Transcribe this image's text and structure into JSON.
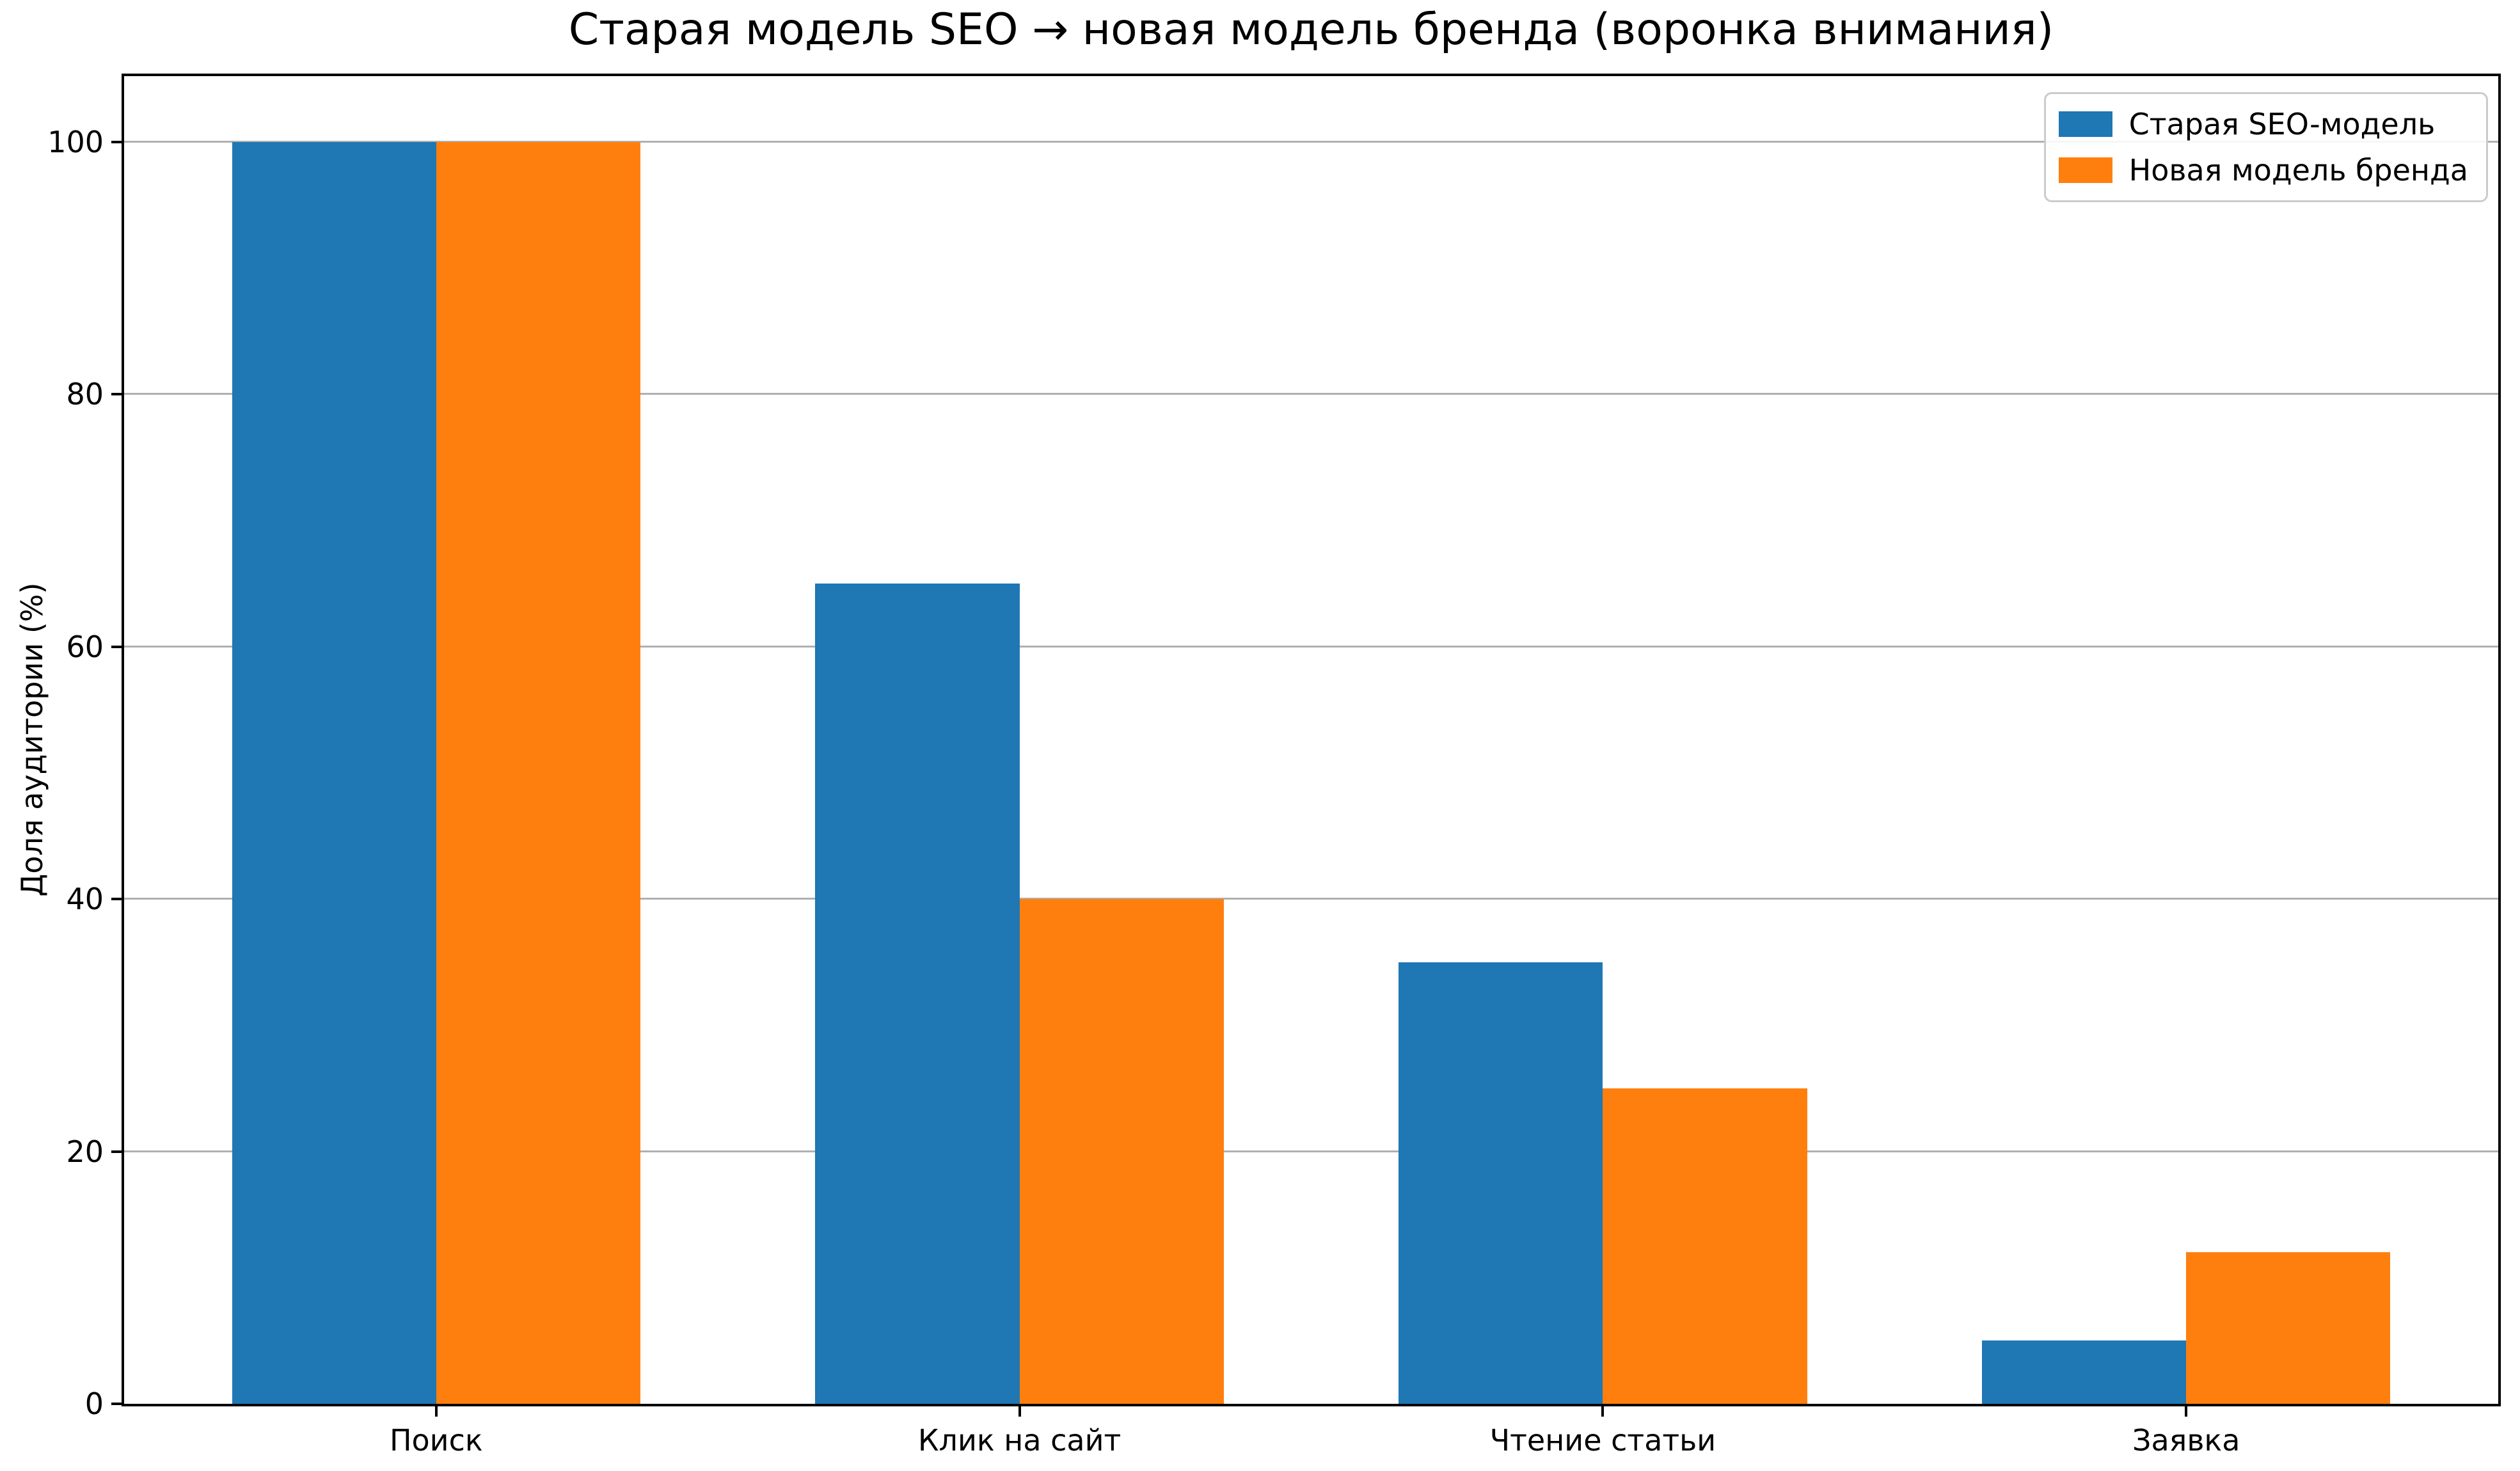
{
  "title": "Старая модель SEO → новая модель бренда (воронка внимания)",
  "chart_data": {
    "type": "bar",
    "title": "Старая модель SEO → новая модель бренда (воронка внимания)",
    "categories": [
      "Поиск",
      "Клик на сайт",
      "Чтение статьи",
      "Заявка"
    ],
    "series": [
      {
        "name": "Старая SEO-модель",
        "color": "#1f77b4",
        "values": [
          100,
          65,
          35,
          5
        ]
      },
      {
        "name": "Новая модель бренда",
        "color": "#ff7f0e",
        "values": [
          100,
          40,
          25,
          12
        ]
      }
    ],
    "xlabel": "",
    "ylabel": "Доля аудитории (%)",
    "ylim": [
      0,
      105.2
    ],
    "xlim": [
      -0.535,
      3.535
    ],
    "bar_width": 0.35,
    "yticks": [
      0,
      20,
      40,
      60,
      80,
      100
    ],
    "grid": true,
    "grid_color": "#b0b0b0",
    "legend_position": "upper right",
    "legend_labels": [
      "Старая SEO-модель",
      "Новая модель бренда"
    ]
  }
}
